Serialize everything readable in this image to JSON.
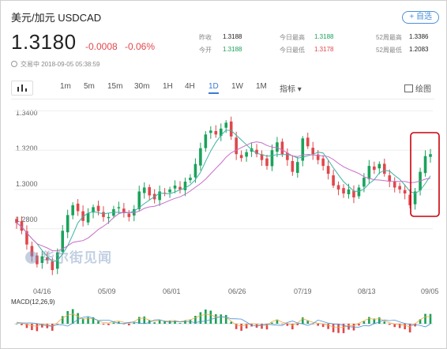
{
  "header": {
    "title": "美元/加元 USDCAD",
    "favorite_label": "+ 自选",
    "price": "1.3180",
    "change": "-0.0008",
    "change_pct": "-0.06%",
    "status": "交易中 2018-09-05 05:38:59"
  },
  "stats": [
    {
      "label": "昨收",
      "value": "1.3188",
      "color": "dark"
    },
    {
      "label": "今开",
      "value": "1.3188",
      "color": "green"
    },
    {
      "label": "今日最高",
      "value": "1.3188",
      "color": "green"
    },
    {
      "label": "今日最低",
      "value": "1.3178",
      "color": "red"
    },
    {
      "label": "52周最高",
      "value": "1.3386",
      "color": "dark"
    },
    {
      "label": "52周最低",
      "value": "1.2083",
      "color": "dark"
    }
  ],
  "toolbar": {
    "tabs": [
      "1m",
      "5m",
      "15m",
      "30m",
      "1H",
      "4H",
      "1D",
      "1W",
      "1M"
    ],
    "active_tab": "1D",
    "indicator_label": "指标 ▾",
    "draw_label": "绘图"
  },
  "chart": {
    "y_ticks": [
      "1.3400",
      "1.3200",
      "1.3000",
      "1.2800"
    ],
    "x_ticks": [
      "04/16",
      "05/09",
      "06/01",
      "06/26",
      "07/19",
      "08/13",
      "09/05"
    ],
    "macd_label": "MACD(12,26,9)",
    "watermark": "华尔街见闻",
    "colors": {
      "up": "#1aa25a",
      "down": "#e0474c",
      "ma1": "#3bb3a3",
      "ma2": "#c86cc8",
      "highlight": "#c8000a"
    }
  },
  "chart_data": {
    "type": "candlestick",
    "y_range": [
      1.255,
      1.345
    ],
    "close_path": [
      1.283,
      1.279,
      1.272,
      1.266,
      1.262,
      1.266,
      1.264,
      1.259,
      1.268,
      1.279,
      1.287,
      1.292,
      1.289,
      1.284,
      1.288,
      1.291,
      1.289,
      1.286,
      1.286,
      1.29,
      1.291,
      1.288,
      1.286,
      1.29,
      1.299,
      1.301,
      1.297,
      1.295,
      1.299,
      1.298,
      1.3,
      1.302,
      1.3,
      1.304,
      1.306,
      1.313,
      1.321,
      1.328,
      1.33,
      1.328,
      1.331,
      1.334,
      1.327,
      1.318,
      1.316,
      1.319,
      1.321,
      1.318,
      1.315,
      1.312,
      1.32,
      1.324,
      1.318,
      1.315,
      1.309,
      1.314,
      1.326,
      1.322,
      1.318,
      1.315,
      1.312,
      1.308,
      1.302,
      1.3,
      1.298,
      1.3,
      1.296,
      1.301,
      1.306,
      1.312,
      1.31,
      1.313,
      1.308,
      1.304,
      1.301,
      1.3,
      1.298,
      1.292,
      1.299,
      1.309,
      1.317,
      1.318
    ]
  }
}
